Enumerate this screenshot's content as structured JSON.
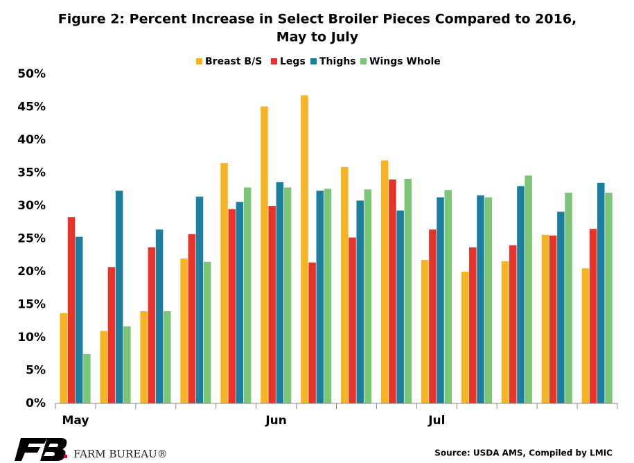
{
  "chart_data": {
    "type": "bar",
    "title": [
      "Figure 2: Percent Increase in Select Broiler Pieces Compared to 2016,",
      "May to July"
    ],
    "categories": [
      "May",
      null,
      null,
      null,
      null,
      "Jun",
      null,
      null,
      null,
      "Jul",
      null,
      null,
      null,
      null
    ],
    "series": [
      {
        "name": "Breast B/S",
        "color": "#f6b324",
        "values": [
          13.7,
          11,
          14,
          22,
          36.5,
          45.1,
          46.8,
          35.9,
          36.9,
          21.8,
          20,
          21.6,
          25.6,
          20.5
        ]
      },
      {
        "name": "Legs",
        "color": "#e8332a",
        "values": [
          28.3,
          20.7,
          23.7,
          25.7,
          29.5,
          30,
          21.4,
          25.2,
          34,
          26.4,
          23.7,
          24,
          25.5,
          26.5
        ]
      },
      {
        "name": "Thighs",
        "color": "#1b7e9f",
        "values": [
          25.3,
          32.3,
          26.4,
          31.4,
          30.6,
          33.6,
          32.3,
          30.8,
          29.3,
          31.3,
          31.6,
          33,
          29.1,
          33.5
        ]
      },
      {
        "name": "Wings Whole",
        "color": "#7dc577",
        "values": [
          7.5,
          11.7,
          14,
          21.5,
          32.8,
          32.8,
          32.6,
          32.5,
          34.1,
          32.4,
          31.3,
          34.6,
          32,
          32
        ]
      }
    ],
    "ylim": [
      0,
      50
    ],
    "yticks": [
      {
        "value": 0,
        "label": "0%"
      },
      {
        "value": 5,
        "label": "5%"
      },
      {
        "value": 10,
        "label": "10%"
      },
      {
        "value": 15,
        "label": "15%"
      },
      {
        "value": 20,
        "label": "20%"
      },
      {
        "value": 25,
        "label": "25%"
      },
      {
        "value": 30,
        "label": "30%"
      },
      {
        "value": 35,
        "label": "35%"
      },
      {
        "value": 40,
        "label": "40%"
      },
      {
        "value": 45,
        "label": "45%"
      },
      {
        "value": 50,
        "label": "50%"
      }
    ],
    "legend": "top",
    "grid": false
  },
  "footer": {
    "brand": "FARM BUREAU®",
    "source": "Source: USDA AMS, Compiled by LMIC"
  }
}
